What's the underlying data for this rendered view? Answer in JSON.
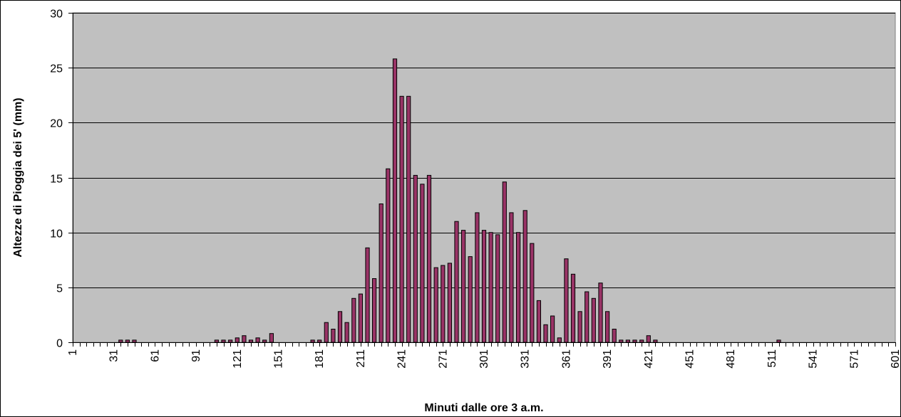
{
  "chart_data": {
    "type": "bar",
    "title": "",
    "xlabel": "Minuti dalle ore 3 a.m.",
    "ylabel": "Altezze di Pioggia dei 5' (mm)",
    "ylim": [
      0,
      30
    ],
    "yticks": [
      0,
      5,
      10,
      15,
      20,
      25,
      30
    ],
    "x_tick_labels": [
      "1",
      "31",
      "61",
      "91",
      "121",
      "151",
      "181",
      "211",
      "241",
      "271",
      "301",
      "331",
      "361",
      "391",
      "421",
      "451",
      "481",
      "511",
      "541",
      "571",
      "601"
    ],
    "grid": true,
    "legend": "none",
    "x": [
      36,
      41,
      46,
      106,
      111,
      116,
      121,
      126,
      131,
      136,
      141,
      146,
      176,
      181,
      186,
      191,
      196,
      201,
      206,
      211,
      216,
      221,
      226,
      231,
      236,
      241,
      246,
      251,
      256,
      261,
      266,
      271,
      276,
      281,
      286,
      291,
      296,
      301,
      306,
      311,
      316,
      321,
      326,
      331,
      336,
      341,
      346,
      351,
      356,
      361,
      366,
      371,
      376,
      381,
      386,
      391,
      396,
      401,
      406,
      411,
      416,
      421,
      426,
      516
    ],
    "values": [
      0.2,
      0.2,
      0.2,
      0.2,
      0.2,
      0.2,
      0.4,
      0.6,
      0.2,
      0.4,
      0.2,
      0.8,
      0.2,
      0.2,
      1.8,
      1.2,
      2.8,
      1.8,
      4.0,
      4.4,
      8.6,
      5.8,
      12.6,
      15.8,
      25.8,
      22.4,
      22.4,
      15.2,
      14.4,
      15.2,
      6.8,
      7.0,
      7.2,
      11.0,
      10.2,
      7.8,
      11.8,
      10.2,
      10.0,
      9.8,
      14.6,
      11.8,
      10.0,
      12.0,
      9.0,
      3.8,
      1.6,
      2.4,
      0.4,
      7.6,
      6.2,
      2.8,
      4.6,
      4.0,
      5.4,
      2.8,
      1.2,
      0.2,
      0.2,
      0.2,
      0.2,
      0.6,
      0.2,
      0.2
    ],
    "colors": {
      "bar": "#993366",
      "plot_background": "#c0c0c0"
    }
  }
}
